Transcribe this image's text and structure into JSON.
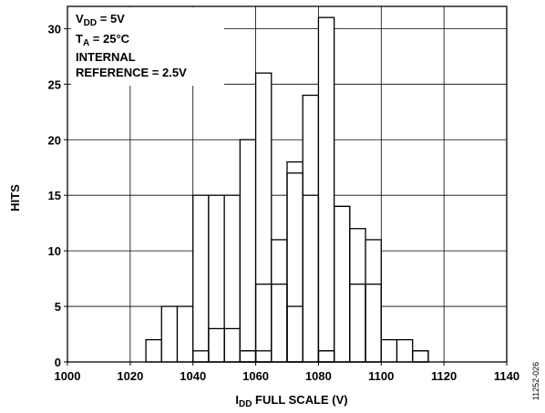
{
  "chart_data": {
    "type": "bar",
    "subtype": "overlaid-histogram",
    "xlabel_main": "I",
    "xlabel_sub": "DD",
    "xlabel_rest": " FULL SCALE (V)",
    "ylabel": "HITS",
    "xlim": [
      1000,
      1140
    ],
    "ylim": [
      0,
      32
    ],
    "xticks": [
      1000,
      1020,
      1040,
      1060,
      1080,
      1100,
      1120,
      1140
    ],
    "yticks": [
      0,
      5,
      10,
      15,
      20,
      25,
      30
    ],
    "grid": true,
    "bin_width": 5,
    "series": [
      {
        "bins": [
          {
            "x": 1025,
            "v": 2
          },
          {
            "x": 1030,
            "v": 5
          },
          {
            "x": 1035,
            "v": 5
          },
          {
            "x": 1040,
            "v": 15
          },
          {
            "x": 1045,
            "v": 15
          },
          {
            "x": 1050,
            "v": 15
          },
          {
            "x": 1055,
            "v": 20
          },
          {
            "x": 1060,
            "v": 26
          },
          {
            "x": 1065,
            "v": 11
          },
          {
            "x": 1070,
            "v": 18
          },
          {
            "x": 1075,
            "v": 24
          },
          {
            "x": 1080,
            "v": 31
          },
          {
            "x": 1085,
            "v": 14
          },
          {
            "x": 1090,
            "v": 12
          },
          {
            "x": 1095,
            "v": 11
          },
          {
            "x": 1100,
            "v": 2
          },
          {
            "x": 1105,
            "v": 2
          },
          {
            "x": 1110,
            "v": 1
          }
        ]
      },
      {
        "bins": [
          {
            "x": 1040,
            "v": 1
          },
          {
            "x": 1045,
            "v": 3
          },
          {
            "x": 1050,
            "v": 3
          },
          {
            "x": 1055,
            "v": 1
          },
          {
            "x": 1060,
            "v": 7
          },
          {
            "x": 1065,
            "v": 7
          },
          {
            "x": 1070,
            "v": 17
          },
          {
            "x": 1075,
            "v": 15
          },
          {
            "x": 1080,
            "v": 1
          },
          {
            "x": 1085,
            "v": 14
          },
          {
            "x": 1090,
            "v": 7
          },
          {
            "x": 1095,
            "v": 7
          },
          {
            "x": 1110,
            "v": 1
          }
        ]
      },
      {
        "bins": [
          {
            "x": 1055,
            "v": 1
          },
          {
            "x": 1060,
            "v": 1
          },
          {
            "x": 1070,
            "v": 5
          },
          {
            "x": 1080,
            "v": 1
          }
        ]
      }
    ],
    "annotations": {
      "line1_main": "V",
      "line1_sub": "DD",
      "line1_rest": " = 5V",
      "line2_main": "T",
      "line2_sub": "A",
      "line2_rest": " = 25°C",
      "line3": "INTERNAL",
      "line4": "REFERENCE = 2.5V"
    },
    "figure_id": "11252-026"
  }
}
